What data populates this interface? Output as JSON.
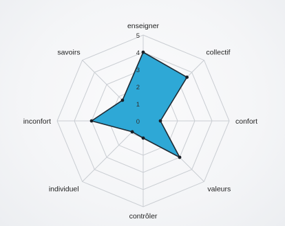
{
  "chart_data": {
    "type": "radar",
    "title": "",
    "axes": [
      "enseigner",
      "collectif",
      "confort",
      "valeurs",
      "contrôler",
      "individuel",
      "inconfort",
      "savoirs"
    ],
    "ticks": [
      0,
      1,
      2,
      3,
      4,
      5
    ],
    "range": [
      0,
      5
    ],
    "grid": true,
    "series": [
      {
        "values": [
          4,
          3.6,
          1,
          3,
          1,
          0.9,
          3,
          1.7
        ],
        "color": "#2ea8d6",
        "line_color": "#1f2a33"
      }
    ]
  }
}
